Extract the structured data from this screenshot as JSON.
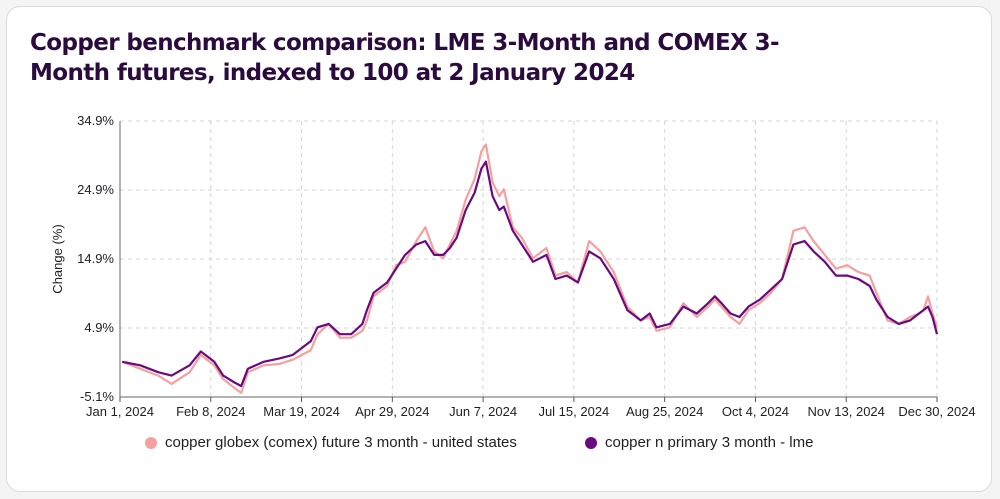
{
  "chart_data": {
    "type": "line",
    "title": "Copper benchmark comparison: LME 3-Month and COMEX 3-Month futures, indexed to 100 at 2 January 2024",
    "ylabel": "Change (%)",
    "xlabel": "",
    "x_ticks": [
      "Jan 1, 2024",
      "Feb 8, 2024",
      "Mar 19, 2024",
      "Apr 29, 2024",
      "Jun 7, 2024",
      "Jul 15, 2024",
      "Aug 25, 2024",
      "Oct 4, 2024",
      "Nov 13, 2024",
      "Dec 30, 2024"
    ],
    "y_ticks": [
      "34.9%",
      "24.9%",
      "14.9%",
      "4.9%",
      "-5.1%"
    ],
    "ylim": [
      -5.1,
      34.9
    ],
    "xlim": [
      "2024-01-01",
      "2024-12-30"
    ],
    "grid": true,
    "legend_position": "bottom",
    "series": [
      {
        "name": "copper globex (comex) future 3 month - united states",
        "color": "#f4a0a0",
        "points": [
          [
            "2024-01-02",
            0.0
          ],
          [
            "2024-01-10",
            -1.0
          ],
          [
            "2024-01-18",
            -2.0
          ],
          [
            "2024-01-24",
            -3.2
          ],
          [
            "2024-02-01",
            -1.5
          ],
          [
            "2024-02-06",
            1.0
          ],
          [
            "2024-02-12",
            -0.5
          ],
          [
            "2024-02-16",
            -2.5
          ],
          [
            "2024-02-21",
            -3.8
          ],
          [
            "2024-02-24",
            -4.5
          ],
          [
            "2024-02-27",
            -1.5
          ],
          [
            "2024-03-05",
            -0.5
          ],
          [
            "2024-03-12",
            -0.3
          ],
          [
            "2024-03-18",
            0.3
          ],
          [
            "2024-03-22",
            1.0
          ],
          [
            "2024-03-26",
            1.7
          ],
          [
            "2024-03-29",
            4.0
          ],
          [
            "2024-04-03",
            5.5
          ],
          [
            "2024-04-08",
            3.5
          ],
          [
            "2024-04-13",
            3.5
          ],
          [
            "2024-04-18",
            4.5
          ],
          [
            "2024-04-20",
            6.0
          ],
          [
            "2024-04-23",
            9.5
          ],
          [
            "2024-04-29",
            11.0
          ],
          [
            "2024-05-03",
            14.0
          ],
          [
            "2024-05-07",
            14.5
          ],
          [
            "2024-05-12",
            17.5
          ],
          [
            "2024-05-16",
            19.5
          ],
          [
            "2024-05-20",
            16.0
          ],
          [
            "2024-05-24",
            15.0
          ],
          [
            "2024-05-27",
            17.0
          ],
          [
            "2024-05-30",
            19.0
          ],
          [
            "2024-06-03",
            23.5
          ],
          [
            "2024-06-07",
            26.5
          ],
          [
            "2024-06-10",
            30.5
          ],
          [
            "2024-06-12",
            31.5
          ],
          [
            "2024-06-15",
            26.0
          ],
          [
            "2024-06-18",
            24.0
          ],
          [
            "2024-06-20",
            25.0
          ],
          [
            "2024-06-24",
            19.5
          ],
          [
            "2024-06-28",
            18.0
          ],
          [
            "2024-07-03",
            15.0
          ],
          [
            "2024-07-09",
            16.5
          ],
          [
            "2024-07-13",
            12.5
          ],
          [
            "2024-07-18",
            13.0
          ],
          [
            "2024-07-23",
            11.5
          ],
          [
            "2024-07-28",
            17.5
          ],
          [
            "2024-08-02",
            16.0
          ],
          [
            "2024-08-08",
            13.0
          ],
          [
            "2024-08-14",
            8.0
          ],
          [
            "2024-08-20",
            6.0
          ],
          [
            "2024-08-24",
            6.5
          ],
          [
            "2024-08-27",
            4.5
          ],
          [
            "2024-09-02",
            5.0
          ],
          [
            "2024-09-08",
            8.5
          ],
          [
            "2024-09-14",
            6.5
          ],
          [
            "2024-09-19",
            8.0
          ],
          [
            "2024-09-22",
            9.0
          ],
          [
            "2024-09-25",
            8.0
          ],
          [
            "2024-09-29",
            6.5
          ],
          [
            "2024-10-03",
            5.5
          ],
          [
            "2024-10-07",
            7.5
          ],
          [
            "2024-10-12",
            8.5
          ],
          [
            "2024-10-17",
            10.0
          ],
          [
            "2024-10-22",
            12.0
          ],
          [
            "2024-10-27",
            19.0
          ],
          [
            "2024-11-01",
            19.5
          ],
          [
            "2024-11-05",
            17.5
          ],
          [
            "2024-11-10",
            15.5
          ],
          [
            "2024-11-15",
            13.5
          ],
          [
            "2024-11-20",
            14.0
          ],
          [
            "2024-11-25",
            13.0
          ],
          [
            "2024-11-30",
            12.5
          ],
          [
            "2024-12-03",
            10.0
          ],
          [
            "2024-12-08",
            6.0
          ],
          [
            "2024-12-13",
            5.5
          ],
          [
            "2024-12-18",
            6.5
          ],
          [
            "2024-12-22",
            7.0
          ],
          [
            "2024-12-24",
            7.5
          ],
          [
            "2024-12-26",
            9.5
          ],
          [
            "2024-12-28",
            7.0
          ],
          [
            "2024-12-30",
            5.0
          ]
        ]
      },
      {
        "name": "copper n primary 3 month - lme",
        "color": "#6a0a7e",
        "points": [
          [
            "2024-01-02",
            0.0
          ],
          [
            "2024-01-10",
            -0.5
          ],
          [
            "2024-01-18",
            -1.5
          ],
          [
            "2024-01-24",
            -2.0
          ],
          [
            "2024-02-01",
            -0.5
          ],
          [
            "2024-02-06",
            1.5
          ],
          [
            "2024-02-12",
            0.0
          ],
          [
            "2024-02-16",
            -2.0
          ],
          [
            "2024-02-21",
            -3.0
          ],
          [
            "2024-02-24",
            -3.5
          ],
          [
            "2024-02-27",
            -1.0
          ],
          [
            "2024-03-05",
            0.0
          ],
          [
            "2024-03-12",
            0.5
          ],
          [
            "2024-03-18",
            1.0
          ],
          [
            "2024-03-22",
            2.0
          ],
          [
            "2024-03-26",
            3.0
          ],
          [
            "2024-03-29",
            5.0
          ],
          [
            "2024-04-03",
            5.5
          ],
          [
            "2024-04-08",
            4.0
          ],
          [
            "2024-04-13",
            4.0
          ],
          [
            "2024-04-18",
            5.5
          ],
          [
            "2024-04-20",
            7.5
          ],
          [
            "2024-04-23",
            10.0
          ],
          [
            "2024-04-29",
            11.5
          ],
          [
            "2024-05-03",
            13.5
          ],
          [
            "2024-05-07",
            15.5
          ],
          [
            "2024-05-12",
            17.0
          ],
          [
            "2024-05-16",
            17.5
          ],
          [
            "2024-05-20",
            15.5
          ],
          [
            "2024-05-24",
            15.5
          ],
          [
            "2024-05-27",
            16.5
          ],
          [
            "2024-05-30",
            18.0
          ],
          [
            "2024-06-03",
            22.0
          ],
          [
            "2024-06-07",
            24.5
          ],
          [
            "2024-06-10",
            28.0
          ],
          [
            "2024-06-12",
            29.0
          ],
          [
            "2024-06-15",
            24.0
          ],
          [
            "2024-06-18",
            22.0
          ],
          [
            "2024-06-20",
            22.5
          ],
          [
            "2024-06-24",
            19.0
          ],
          [
            "2024-06-28",
            17.0
          ],
          [
            "2024-07-03",
            14.5
          ],
          [
            "2024-07-09",
            15.5
          ],
          [
            "2024-07-13",
            12.0
          ],
          [
            "2024-07-18",
            12.5
          ],
          [
            "2024-07-23",
            11.5
          ],
          [
            "2024-07-28",
            16.0
          ],
          [
            "2024-08-02",
            15.0
          ],
          [
            "2024-08-08",
            12.0
          ],
          [
            "2024-08-14",
            7.5
          ],
          [
            "2024-08-20",
            6.0
          ],
          [
            "2024-08-24",
            7.0
          ],
          [
            "2024-08-27",
            5.0
          ],
          [
            "2024-09-02",
            5.5
          ],
          [
            "2024-09-08",
            8.0
          ],
          [
            "2024-09-14",
            7.0
          ],
          [
            "2024-09-19",
            8.5
          ],
          [
            "2024-09-22",
            9.5
          ],
          [
            "2024-09-25",
            8.5
          ],
          [
            "2024-09-29",
            7.0
          ],
          [
            "2024-10-03",
            6.5
          ],
          [
            "2024-10-07",
            8.0
          ],
          [
            "2024-10-12",
            9.0
          ],
          [
            "2024-10-17",
            10.5
          ],
          [
            "2024-10-22",
            12.0
          ],
          [
            "2024-10-27",
            17.0
          ],
          [
            "2024-11-01",
            17.5
          ],
          [
            "2024-11-05",
            16.0
          ],
          [
            "2024-11-10",
            14.5
          ],
          [
            "2024-11-15",
            12.5
          ],
          [
            "2024-11-20",
            12.5
          ],
          [
            "2024-11-25",
            12.0
          ],
          [
            "2024-11-30",
            11.0
          ],
          [
            "2024-12-03",
            9.0
          ],
          [
            "2024-12-08",
            6.5
          ],
          [
            "2024-12-13",
            5.5
          ],
          [
            "2024-12-18",
            6.0
          ],
          [
            "2024-12-22",
            7.0
          ],
          [
            "2024-12-24",
            7.5
          ],
          [
            "2024-12-26",
            8.0
          ],
          [
            "2024-12-28",
            6.5
          ],
          [
            "2024-12-30",
            4.0
          ]
        ]
      }
    ]
  }
}
